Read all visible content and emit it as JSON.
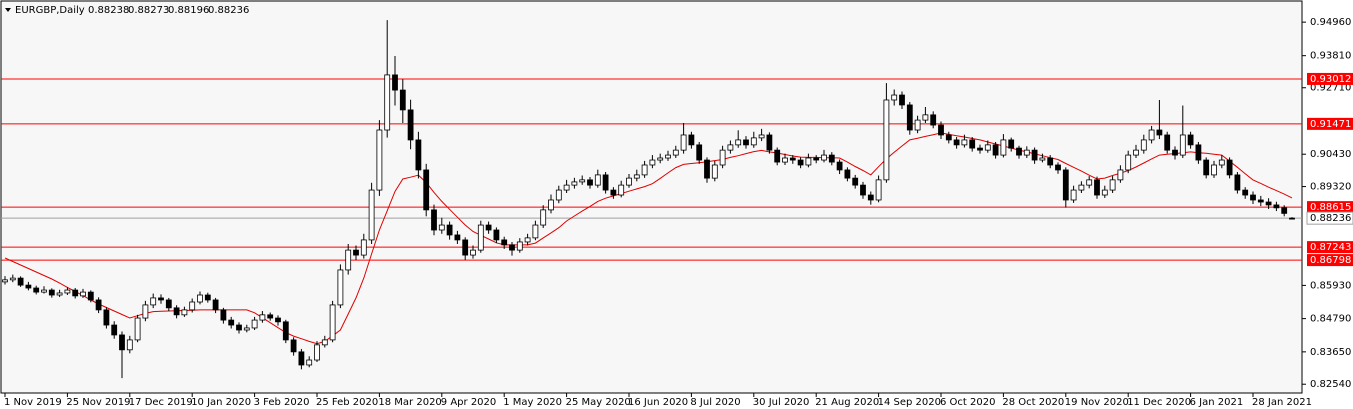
{
  "chart_data": {
    "type": "candlestick",
    "title": "EURGBP,Daily",
    "ylim": [
      0.8217,
      0.9572
    ],
    "yticks": [
      {
        "value": 0.9496,
        "label": "0.94960"
      },
      {
        "value": 0.9381,
        "label": "0.93810"
      },
      {
        "value": 0.9271,
        "label": "0.92710"
      },
      {
        "value": 0.9043,
        "label": "0.90430"
      },
      {
        "value": 0.8932,
        "label": "0.89320"
      },
      {
        "value": 0.8593,
        "label": "0.85930"
      },
      {
        "value": 0.8479,
        "label": "0.84790"
      },
      {
        "value": 0.8365,
        "label": "0.83650"
      },
      {
        "value": 0.8254,
        "label": "0.82540"
      }
    ],
    "x_labels": [
      "1 Nov 2019",
      "25 Nov 2019",
      "17 Dec 2019",
      "10 Jan 2020",
      "3 Feb 2020",
      "25 Feb 2020",
      "18 Mar 2020",
      "9 Apr 2020",
      "1 May 2020",
      "25 May 2020",
      "16 Jun 2020",
      "8 Jul 2020",
      "30 Jul 2020",
      "21 Aug 2020",
      "14 Sep 2020",
      "6 Oct 2020",
      "28 Oct 2020",
      "19 Nov 2020",
      "11 Dec 2020",
      "6 Jan 2021",
      "28 Jan 2021"
    ],
    "levels": [
      0.93012,
      0.91471,
      0.88615,
      0.87243,
      0.86798
    ],
    "level_color": "#ff0000",
    "ma_color": "#e00000",
    "up_color": "#ffffff",
    "down_color": "#000000",
    "candles": [
      [
        0.8605,
        0.8625,
        0.8596,
        0.8612
      ],
      [
        0.8612,
        0.863,
        0.8604,
        0.8618
      ],
      [
        0.8618,
        0.8624,
        0.8588,
        0.8594
      ],
      [
        0.8594,
        0.8605,
        0.8576,
        0.8584
      ],
      [
        0.8584,
        0.8592,
        0.8562,
        0.857
      ],
      [
        0.857,
        0.859,
        0.8565,
        0.8577
      ],
      [
        0.8577,
        0.8583,
        0.8551,
        0.856
      ],
      [
        0.856,
        0.8578,
        0.8553,
        0.8567
      ],
      [
        0.8567,
        0.8586,
        0.856,
        0.8577
      ],
      [
        0.8577,
        0.8584,
        0.8548,
        0.8557
      ],
      [
        0.8557,
        0.8581,
        0.855,
        0.857
      ],
      [
        0.857,
        0.8576,
        0.8535,
        0.8543
      ],
      [
        0.8543,
        0.8552,
        0.8498,
        0.8509
      ],
      [
        0.8509,
        0.8518,
        0.8445,
        0.8457
      ],
      [
        0.8457,
        0.847,
        0.841,
        0.8423
      ],
      [
        0.8423,
        0.8435,
        0.8275,
        0.8372
      ],
      [
        0.8372,
        0.842,
        0.836,
        0.8406
      ],
      [
        0.8406,
        0.8492,
        0.8398,
        0.8481
      ],
      [
        0.8481,
        0.854,
        0.847,
        0.8526
      ],
      [
        0.8526,
        0.8565,
        0.8515,
        0.855
      ],
      [
        0.855,
        0.8562,
        0.853,
        0.8543
      ],
      [
        0.8543,
        0.855,
        0.8505,
        0.8516
      ],
      [
        0.8516,
        0.8525,
        0.848,
        0.8492
      ],
      [
        0.8492,
        0.852,
        0.8485,
        0.8509
      ],
      [
        0.8509,
        0.8548,
        0.85,
        0.8536
      ],
      [
        0.8536,
        0.8572,
        0.8528,
        0.856
      ],
      [
        0.856,
        0.8568,
        0.8534,
        0.8543
      ],
      [
        0.8543,
        0.855,
        0.8498,
        0.8509
      ],
      [
        0.8509,
        0.8516,
        0.8462,
        0.8474
      ],
      [
        0.8474,
        0.8485,
        0.8445,
        0.8457
      ],
      [
        0.8457,
        0.8466,
        0.8428,
        0.844
      ],
      [
        0.844,
        0.8458,
        0.8432,
        0.8447
      ],
      [
        0.8447,
        0.8485,
        0.844,
        0.8474
      ],
      [
        0.8474,
        0.8505,
        0.8465,
        0.8492
      ],
      [
        0.8492,
        0.85,
        0.8472,
        0.8481
      ],
      [
        0.8481,
        0.849,
        0.8455,
        0.8468
      ],
      [
        0.8468,
        0.8475,
        0.8395,
        0.8406
      ],
      [
        0.8406,
        0.8415,
        0.8352,
        0.8365
      ],
      [
        0.8365,
        0.8375,
        0.8305,
        0.832
      ],
      [
        0.832,
        0.835,
        0.8312,
        0.8337
      ],
      [
        0.8337,
        0.8402,
        0.833,
        0.8389
      ],
      [
        0.8389,
        0.842,
        0.838,
        0.8406
      ],
      [
        0.8406,
        0.854,
        0.8398,
        0.8526
      ],
      [
        0.8526,
        0.8665,
        0.8515,
        0.8646
      ],
      [
        0.8646,
        0.8735,
        0.863,
        0.8714
      ],
      [
        0.8714,
        0.873,
        0.868,
        0.8697
      ],
      [
        0.8697,
        0.877,
        0.8685,
        0.8749
      ],
      [
        0.8749,
        0.8945,
        0.8735,
        0.892
      ],
      [
        0.892,
        0.916,
        0.89,
        0.9126
      ],
      [
        0.9126,
        0.9503,
        0.91,
        0.9315
      ],
      [
        0.9315,
        0.938,
        0.921,
        0.9263
      ],
      [
        0.9263,
        0.93,
        0.915,
        0.9195
      ],
      [
        0.9195,
        0.923,
        0.906,
        0.9092
      ],
      [
        0.9092,
        0.912,
        0.896,
        0.8989
      ],
      [
        0.8989,
        0.901,
        0.883,
        0.8852
      ],
      [
        0.8852,
        0.887,
        0.8765,
        0.8783
      ],
      [
        0.8783,
        0.8825,
        0.877,
        0.88
      ],
      [
        0.88,
        0.8812,
        0.875,
        0.8766
      ],
      [
        0.8766,
        0.878,
        0.8735,
        0.8749
      ],
      [
        0.8749,
        0.8758,
        0.868,
        0.8697
      ],
      [
        0.8697,
        0.873,
        0.8685,
        0.8714
      ],
      [
        0.8714,
        0.8815,
        0.8705,
        0.88
      ],
      [
        0.88,
        0.8812,
        0.877,
        0.8783
      ],
      [
        0.8783,
        0.8792,
        0.8738,
        0.8749
      ],
      [
        0.8749,
        0.876,
        0.8718,
        0.8732
      ],
      [
        0.8732,
        0.8742,
        0.8695,
        0.8714
      ],
      [
        0.8714,
        0.8755,
        0.8705,
        0.8742
      ],
      [
        0.8742,
        0.877,
        0.873,
        0.8756
      ],
      [
        0.8756,
        0.8815,
        0.8748,
        0.88
      ],
      [
        0.88,
        0.8868,
        0.879,
        0.8852
      ],
      [
        0.8852,
        0.8905,
        0.884,
        0.8886
      ],
      [
        0.8886,
        0.8935,
        0.8875,
        0.892
      ],
      [
        0.892,
        0.8955,
        0.891,
        0.8937
      ],
      [
        0.8937,
        0.8962,
        0.8925,
        0.8948
      ],
      [
        0.8948,
        0.897,
        0.8938,
        0.8955
      ],
      [
        0.8955,
        0.8965,
        0.8925,
        0.8937
      ],
      [
        0.8937,
        0.899,
        0.8928,
        0.8972
      ],
      [
        0.8972,
        0.8982,
        0.8908,
        0.892
      ],
      [
        0.892,
        0.893,
        0.889,
        0.8903
      ],
      [
        0.8903,
        0.8952,
        0.8895,
        0.8937
      ],
      [
        0.8937,
        0.8975,
        0.8928,
        0.8961
      ],
      [
        0.8961,
        0.899,
        0.895,
        0.8972
      ],
      [
        0.8972,
        0.902,
        0.8962,
        0.9006
      ],
      [
        0.9006,
        0.904,
        0.8995,
        0.9023
      ],
      [
        0.9023,
        0.9045,
        0.9012,
        0.903
      ],
      [
        0.903,
        0.9055,
        0.902,
        0.904
      ],
      [
        0.904,
        0.9072,
        0.903,
        0.9057
      ],
      [
        0.9057,
        0.915,
        0.9045,
        0.9109
      ],
      [
        0.9109,
        0.912,
        0.9062,
        0.9075
      ],
      [
        0.9075,
        0.9085,
        0.901,
        0.9023
      ],
      [
        0.9023,
        0.9032,
        0.8945,
        0.8961
      ],
      [
        0.8961,
        0.902,
        0.895,
        0.9006
      ],
      [
        0.9006,
        0.9072,
        0.8995,
        0.9057
      ],
      [
        0.9057,
        0.909,
        0.9045,
        0.9075
      ],
      [
        0.9075,
        0.9125,
        0.9065,
        0.9092
      ],
      [
        0.9092,
        0.9105,
        0.9062,
        0.9075
      ],
      [
        0.9075,
        0.912,
        0.9065,
        0.9099
      ],
      [
        0.9099,
        0.913,
        0.9088,
        0.9109
      ],
      [
        0.9109,
        0.9118,
        0.9045,
        0.9057
      ],
      [
        0.9057,
        0.9066,
        0.9005,
        0.9016
      ],
      [
        0.9016,
        0.9045,
        0.9006,
        0.903
      ],
      [
        0.903,
        0.904,
        0.901,
        0.9023
      ],
      [
        0.9023,
        0.9032,
        0.8995,
        0.9006
      ],
      [
        0.9006,
        0.9045,
        0.8998,
        0.903
      ],
      [
        0.903,
        0.904,
        0.9012,
        0.9023
      ],
      [
        0.9023,
        0.9058,
        0.9015,
        0.904
      ],
      [
        0.904,
        0.905,
        0.9005,
        0.9016
      ],
      [
        0.9016,
        0.9025,
        0.8975,
        0.8989
      ],
      [
        0.8989,
        0.8998,
        0.895,
        0.8961
      ],
      [
        0.8961,
        0.8972,
        0.8925,
        0.8937
      ],
      [
        0.8937,
        0.8948,
        0.889,
        0.8903
      ],
      [
        0.8903,
        0.8915,
        0.887,
        0.8886
      ],
      [
        0.8886,
        0.897,
        0.8878,
        0.8955
      ],
      [
        0.8955,
        0.9287,
        0.8945,
        0.9229
      ],
      [
        0.9229,
        0.9265,
        0.921,
        0.9246
      ],
      [
        0.9246,
        0.9258,
        0.9198,
        0.9212
      ],
      [
        0.9212,
        0.9222,
        0.911,
        0.9126
      ],
      [
        0.9126,
        0.9175,
        0.9115,
        0.916
      ],
      [
        0.916,
        0.9205,
        0.915,
        0.9178
      ],
      [
        0.9178,
        0.919,
        0.9132,
        0.9143
      ],
      [
        0.9143,
        0.9155,
        0.9095,
        0.9109
      ],
      [
        0.9109,
        0.912,
        0.908,
        0.9092
      ],
      [
        0.9092,
        0.9102,
        0.9062,
        0.9075
      ],
      [
        0.9075,
        0.911,
        0.9066,
        0.9092
      ],
      [
        0.9092,
        0.9102,
        0.9052,
        0.9064
      ],
      [
        0.9064,
        0.9076,
        0.9045,
        0.9057
      ],
      [
        0.9057,
        0.909,
        0.9048,
        0.9075
      ],
      [
        0.9075,
        0.9085,
        0.9028,
        0.904
      ],
      [
        0.904,
        0.9112,
        0.9032,
        0.9092
      ],
      [
        0.9092,
        0.91,
        0.9052,
        0.9064
      ],
      [
        0.9064,
        0.9072,
        0.9028,
        0.904
      ],
      [
        0.904,
        0.907,
        0.903,
        0.9057
      ],
      [
        0.9057,
        0.9066,
        0.901,
        0.9023
      ],
      [
        0.9023,
        0.9045,
        0.9015,
        0.903
      ],
      [
        0.903,
        0.904,
        0.8995,
        0.9006
      ],
      [
        0.9006,
        0.9015,
        0.8976,
        0.8989
      ],
      [
        0.8989,
        0.8998,
        0.886,
        0.8886
      ],
      [
        0.8886,
        0.8935,
        0.8876,
        0.892
      ],
      [
        0.892,
        0.895,
        0.891,
        0.8937
      ],
      [
        0.8937,
        0.8968,
        0.8926,
        0.8955
      ],
      [
        0.8955,
        0.8966,
        0.889,
        0.8903
      ],
      [
        0.8903,
        0.8935,
        0.8893,
        0.892
      ],
      [
        0.892,
        0.8968,
        0.891,
        0.8955
      ],
      [
        0.8955,
        0.9005,
        0.8945,
        0.8989
      ],
      [
        0.8989,
        0.9055,
        0.8978,
        0.904
      ],
      [
        0.904,
        0.9075,
        0.903,
        0.9057
      ],
      [
        0.9057,
        0.911,
        0.9045,
        0.9092
      ],
      [
        0.9092,
        0.914,
        0.908,
        0.9126
      ],
      [
        0.9126,
        0.9229,
        0.9095,
        0.9109
      ],
      [
        0.9109,
        0.912,
        0.9045,
        0.9057
      ],
      [
        0.9057,
        0.907,
        0.9025,
        0.904
      ],
      [
        0.904,
        0.921,
        0.903,
        0.9109
      ],
      [
        0.9109,
        0.912,
        0.9062,
        0.9075
      ],
      [
        0.9075,
        0.9085,
        0.901,
        0.9023
      ],
      [
        0.9023,
        0.9032,
        0.896,
        0.8972
      ],
      [
        0.8972,
        0.902,
        0.8962,
        0.9006
      ],
      [
        0.9006,
        0.904,
        0.8995,
        0.9023
      ],
      [
        0.9023,
        0.9032,
        0.896,
        0.8972
      ],
      [
        0.8972,
        0.8982,
        0.8908,
        0.892
      ],
      [
        0.892,
        0.893,
        0.889,
        0.8903
      ],
      [
        0.8903,
        0.8915,
        0.8872,
        0.8886
      ],
      [
        0.8886,
        0.89,
        0.8865,
        0.8879
      ],
      [
        0.8879,
        0.8892,
        0.8855,
        0.8869
      ],
      [
        0.8869,
        0.888,
        0.8848,
        0.8859
      ],
      [
        0.8859,
        0.8868,
        0.883,
        0.884
      ],
      [
        0.88238,
        0.88273,
        0.88196,
        0.88236
      ]
    ],
    "ma": [
      0.8687,
      0.8675,
      0.8663,
      0.8651,
      0.8639,
      0.8627,
      0.8615,
      0.8601,
      0.8586,
      0.8572,
      0.8558,
      0.8543,
      0.8529,
      0.8517,
      0.8505,
      0.8493,
      0.8481,
      0.8489,
      0.8497,
      0.8503,
      0.8504,
      0.8505,
      0.8506,
      0.8507,
      0.8508,
      0.8509,
      0.8509,
      0.8509,
      0.8509,
      0.8509,
      0.8509,
      0.8509,
      0.8499,
      0.8482,
      0.8465,
      0.8448,
      0.8431,
      0.8419,
      0.841,
      0.8401,
      0.8393,
      0.8401,
      0.842,
      0.844,
      0.8495,
      0.855,
      0.8618,
      0.8701,
      0.8783,
      0.8849,
      0.8915,
      0.8958,
      0.8964,
      0.8971,
      0.8946,
      0.8912,
      0.8881,
      0.8854,
      0.8827,
      0.88,
      0.8778,
      0.8765,
      0.8752,
      0.8739,
      0.8732,
      0.8732,
      0.8732,
      0.8732,
      0.8738,
      0.8756,
      0.8773,
      0.8791,
      0.8814,
      0.8831,
      0.8848,
      0.8864,
      0.8881,
      0.8892,
      0.89,
      0.8908,
      0.8916,
      0.8924,
      0.8932,
      0.8942,
      0.896,
      0.8979,
      0.8997,
      0.9008,
      0.9011,
      0.9014,
      0.9017,
      0.9021,
      0.9025,
      0.9032,
      0.9038,
      0.9045,
      0.9052,
      0.9056,
      0.9051,
      0.9047,
      0.9042,
      0.9037,
      0.9033,
      0.9032,
      0.9032,
      0.9031,
      0.9031,
      0.903,
      0.9016,
      0.9001,
      0.8987,
      0.8972,
      0.9,
      0.9027,
      0.905,
      0.9071,
      0.9092,
      0.9098,
      0.9104,
      0.911,
      0.9116,
      0.9111,
      0.9106,
      0.9102,
      0.9097,
      0.9092,
      0.9085,
      0.9078,
      0.9071,
      0.9064,
      0.9057,
      0.9051,
      0.9044,
      0.9038,
      0.9031,
      0.9025,
      0.9011,
      0.8998,
      0.8985,
      0.8971,
      0.8958,
      0.8961,
      0.897,
      0.8978,
      0.8987,
      0.8999,
      0.9013,
      0.9027,
      0.904,
      0.9043,
      0.9045,
      0.9048,
      0.9051,
      0.9048,
      0.9046,
      0.9043,
      0.904,
      0.9019,
      0.8998,
      0.8976,
      0.8955,
      0.8943,
      0.893,
      0.8918,
      0.8906,
      0.8893
    ]
  }
}
